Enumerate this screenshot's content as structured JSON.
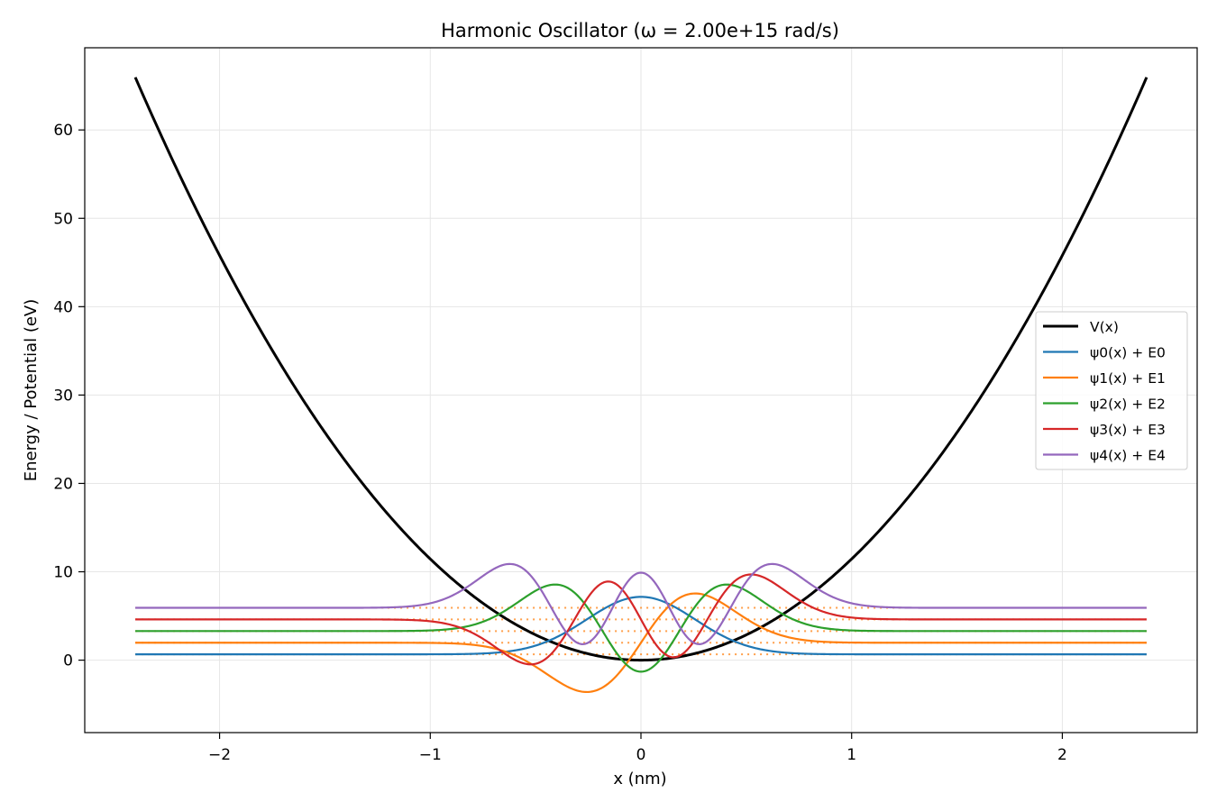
{
  "chart_data": {
    "type": "line",
    "title": "Harmonic Oscillator (ω = 2.00e+15 rad/s)",
    "xlabel": "x (nm)",
    "ylabel": "Energy / Potential (eV)",
    "xlim": [
      -2.64,
      2.64
    ],
    "ylim": [
      -8.2,
      69.3
    ],
    "x_range": [
      -2.4,
      2.4
    ],
    "xticks": [
      -2,
      -1,
      0,
      1,
      2
    ],
    "xtick_labels": [
      "−2",
      "−1",
      "0",
      "1",
      "2"
    ],
    "yticks": [
      0,
      10,
      20,
      30,
      40,
      50,
      60
    ],
    "ytick_labels": [
      "0",
      "10",
      "20",
      "30",
      "40",
      "50",
      "60"
    ],
    "grid": true,
    "legend_position": "right",
    "potential": {
      "name": "V(x)",
      "color": "#000000",
      "form": "0.5*k*x^2",
      "k": 22.9,
      "value_at_x_max": 65.9
    },
    "energy_levels": {
      "values": [
        0.66,
        1.97,
        3.29,
        4.61,
        5.92
      ],
      "color": "#ff7f0e",
      "style": "dotted"
    },
    "wavefunction_params": {
      "alpha": 0.0663,
      "amplitude": 6.5
    },
    "series": [
      {
        "name": "V(x)",
        "label": "V(x)",
        "color": "#000000",
        "kind": "potential"
      },
      {
        "name": "psi0",
        "label": "ψ0(x) + E0",
        "color": "#1f77b4",
        "n": 0,
        "energy": 0.66
      },
      {
        "name": "psi1",
        "label": "ψ1(x) + E1",
        "color": "#ff7f0e",
        "n": 1,
        "energy": 1.97
      },
      {
        "name": "psi2",
        "label": "ψ2(x) + E2",
        "color": "#2ca02c",
        "n": 2,
        "energy": 3.29
      },
      {
        "name": "psi3",
        "label": "ψ3(x) + E3",
        "color": "#d62728",
        "n": 3,
        "energy": 4.61
      },
      {
        "name": "psi4",
        "label": "ψ4(x) + E4",
        "color": "#9467bd",
        "n": 4,
        "energy": 5.92
      }
    ]
  }
}
